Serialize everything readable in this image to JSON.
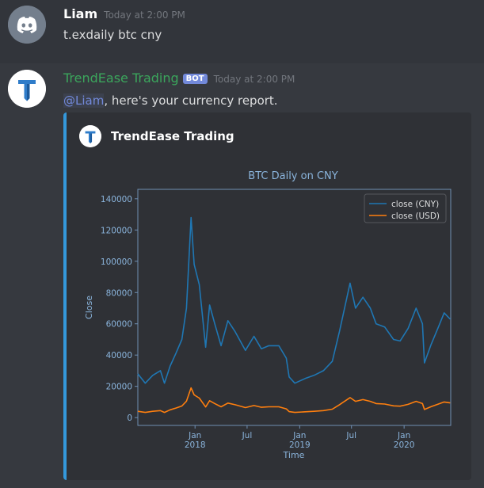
{
  "messages": [
    {
      "username": "Liam",
      "timestamp": "Today at 2:00 PM",
      "content": "t.exdaily btc cny"
    },
    {
      "username": "TrendEase Trading",
      "bot_tag": "BOT",
      "timestamp": "Today at 2:00 PM",
      "mention": "@Liam",
      "content_rest": ", here's your currency report.",
      "embed": {
        "author_name": "TrendEase Trading"
      }
    }
  ],
  "icons": {
    "user_avatar": "discord-logo-icon",
    "bot_avatar": "trendease-logo-icon"
  },
  "colors": {
    "embed_accent": "#3498db",
    "bot_name": "#3ba55c",
    "mention": "#7289da",
    "bot_tag": "#7289da"
  },
  "chart_data": {
    "type": "line",
    "title": "BTC Daily on CNY",
    "xlabel": "Time",
    "ylabel": "Close",
    "ylim": [
      -5000,
      146000
    ],
    "xlim": [
      "2017-06-14",
      "2020-06-12"
    ],
    "y_ticks": [
      "0",
      "20000",
      "40000",
      "60000",
      "80000",
      "100000",
      "120000",
      "140000"
    ],
    "x_ticks": [
      {
        "date": "2017-12-31",
        "label": "Jan",
        "sub": "2018"
      },
      {
        "date": "2018-07-01",
        "label": "Jul",
        "sub": ""
      },
      {
        "date": "2019-01-01",
        "label": "Jan",
        "sub": "2019"
      },
      {
        "date": "2019-07-01",
        "label": "Jul",
        "sub": ""
      },
      {
        "date": "2020-01-01",
        "label": "Jan",
        "sub": "2020"
      }
    ],
    "legend_position": "top-right",
    "grid": false,
    "series": [
      {
        "name": "close (CNY)",
        "color": "#1f77b4",
        "x": [
          "2017-06-14",
          "2017-07-10",
          "2017-08-05",
          "2017-09-01",
          "2017-09-15",
          "2017-10-05",
          "2017-10-25",
          "2017-11-15",
          "2017-12-01",
          "2017-12-17",
          "2017-12-28",
          "2018-01-15",
          "2018-02-06",
          "2018-02-20",
          "2018-03-10",
          "2018-04-01",
          "2018-04-25",
          "2018-05-20",
          "2018-06-25",
          "2018-07-25",
          "2018-08-20",
          "2018-09-15",
          "2018-10-20",
          "2018-11-15",
          "2018-11-25",
          "2018-12-15",
          "2019-01-20",
          "2019-02-20",
          "2019-03-25",
          "2019-04-25",
          "2019-05-20",
          "2019-06-26",
          "2019-07-15",
          "2019-08-10",
          "2019-09-05",
          "2019-09-25",
          "2019-10-25",
          "2019-11-25",
          "2019-12-18",
          "2020-01-15",
          "2020-02-12",
          "2020-03-05",
          "2020-03-12",
          "2020-04-05",
          "2020-04-30",
          "2020-05-20",
          "2020-06-10"
        ],
        "values": [
          28000,
          22000,
          27000,
          30000,
          22000,
          33000,
          41000,
          50000,
          70000,
          128000,
          98000,
          85000,
          45000,
          72000,
          60000,
          46000,
          62000,
          55000,
          43000,
          52000,
          44000,
          46000,
          46000,
          38000,
          26000,
          22000,
          25000,
          27000,
          30000,
          36000,
          55000,
          86000,
          70000,
          77000,
          70000,
          60000,
          58000,
          50000,
          49000,
          57000,
          70000,
          60000,
          35000,
          47000,
          58000,
          67000,
          63000
        ]
      },
      {
        "name": "close (USD)",
        "color": "#ff7f0e",
        "x": [
          "2017-06-14",
          "2017-07-10",
          "2017-08-05",
          "2017-09-01",
          "2017-09-15",
          "2017-10-05",
          "2017-10-25",
          "2017-11-15",
          "2017-12-01",
          "2017-12-17",
          "2017-12-28",
          "2018-01-15",
          "2018-02-06",
          "2018-02-20",
          "2018-03-10",
          "2018-04-01",
          "2018-04-25",
          "2018-05-20",
          "2018-06-25",
          "2018-07-25",
          "2018-08-20",
          "2018-09-15",
          "2018-10-20",
          "2018-11-15",
          "2018-11-25",
          "2018-12-15",
          "2019-01-20",
          "2019-02-20",
          "2019-03-25",
          "2019-04-25",
          "2019-05-20",
          "2019-06-26",
          "2019-07-15",
          "2019-08-10",
          "2019-09-05",
          "2019-09-25",
          "2019-10-25",
          "2019-11-25",
          "2019-12-18",
          "2020-01-15",
          "2020-02-12",
          "2020-03-05",
          "2020-03-12",
          "2020-04-05",
          "2020-04-30",
          "2020-05-20",
          "2020-06-10"
        ],
        "values": [
          4000,
          3300,
          4000,
          4500,
          3300,
          5000,
          6100,
          7400,
          10500,
          19000,
          14500,
          12500,
          6800,
          10800,
          9000,
          6900,
          9300,
          8200,
          6400,
          7700,
          6600,
          6900,
          6900,
          5600,
          3800,
          3300,
          3700,
          4000,
          4500,
          5400,
          8200,
          12800,
          10400,
          11500,
          10400,
          9000,
          8700,
          7500,
          7300,
          8500,
          10400,
          9000,
          5200,
          7000,
          8700,
          10000,
          9400
        ]
      }
    ]
  }
}
